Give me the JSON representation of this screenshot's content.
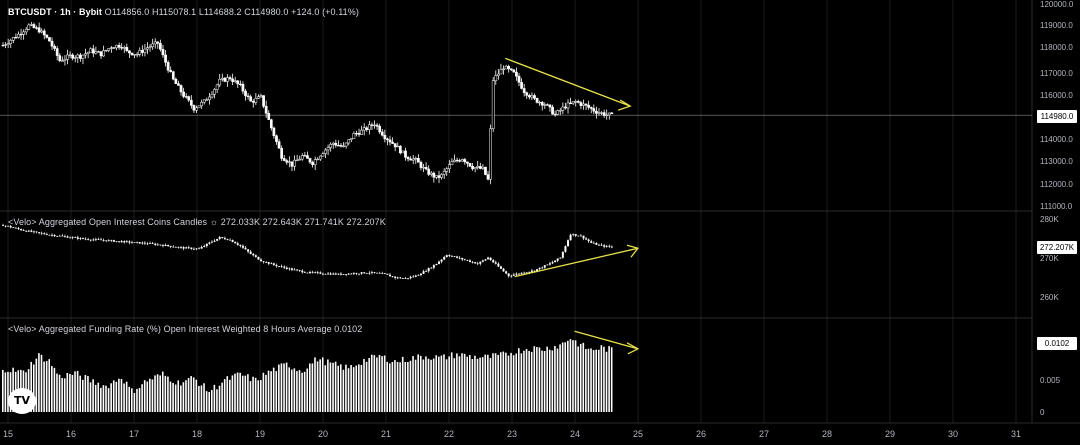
{
  "header": {
    "symbol": "BTCUSDT · 1h · Bybit",
    "ohlc": "O114856.0 H115078.1 L114688.2 C114980.0 +124.0 (+0.11%)"
  },
  "oi_pane": {
    "title": "<Velo> Aggregated Open Interest Coins Candles",
    "values": "272.033K 272.643K 271.741K 272.207K"
  },
  "funding_pane": {
    "title": "<Velo> Aggregated Funding Rate (%) Open Interest Weighted 8 Hours Average 0.0102"
  },
  "badges": {
    "price_last": "114980.0",
    "oi_last": "272.207K",
    "funding_last": "0.0102"
  },
  "logo": {
    "text": "TV",
    "icon": "tradingview-logo-icon"
  },
  "colors": {
    "background": "#000000",
    "candle": "#ffffff",
    "annotation": "#e6e04a",
    "grid": "#1c1c1c",
    "axis_text": "#b2b5be"
  },
  "chart_data": [
    {
      "type": "candlestick",
      "name": "BTCUSDT price",
      "x_ticks": [
        "15",
        "16",
        "17",
        "18",
        "19",
        "20",
        "21",
        "22",
        "23",
        "24",
        "25",
        "26",
        "27",
        "28",
        "29",
        "30",
        "31"
      ],
      "y_ticks": [
        "120000.0",
        "119000.0",
        "118000.0",
        "117000.0",
        "116000.0",
        "114000.0",
        "113000.0",
        "112000.0",
        "111000.0"
      ],
      "ylim": [
        110800,
        120100
      ],
      "last_price": 114980.0,
      "close_path": [
        [
          0,
          118200
        ],
        [
          6,
          118700
        ],
        [
          10,
          119100
        ],
        [
          14,
          118900
        ],
        [
          18,
          118400
        ],
        [
          22,
          117500
        ],
        [
          26,
          117700
        ],
        [
          30,
          117700
        ],
        [
          34,
          117950
        ],
        [
          38,
          117800
        ],
        [
          42,
          118150
        ],
        [
          46,
          118200
        ],
        [
          48,
          117900
        ],
        [
          52,
          117800
        ],
        [
          56,
          118100
        ],
        [
          60,
          118300
        ],
        [
          62,
          117700
        ],
        [
          66,
          116600
        ],
        [
          70,
          115900
        ],
        [
          74,
          115300
        ],
        [
          78,
          115600
        ],
        [
          82,
          116200
        ],
        [
          84,
          116550
        ],
        [
          88,
          116700
        ],
        [
          92,
          116300
        ],
        [
          96,
          115600
        ],
        [
          100,
          115800
        ],
        [
          104,
          114400
        ],
        [
          108,
          113100
        ],
        [
          112,
          112700
        ],
        [
          116,
          113100
        ],
        [
          120,
          112800
        ],
        [
          124,
          113300
        ],
        [
          128,
          113700
        ],
        [
          132,
          113500
        ],
        [
          136,
          114100
        ],
        [
          140,
          114300
        ],
        [
          144,
          114600
        ],
        [
          148,
          114000
        ],
        [
          152,
          113600
        ],
        [
          156,
          113100
        ],
        [
          160,
          112900
        ],
        [
          164,
          112400
        ],
        [
          168,
          112100
        ],
        [
          170,
          112200
        ],
        [
          174,
          112800
        ],
        [
          178,
          113000
        ],
        [
          182,
          112600
        ],
        [
          186,
          112500
        ],
        [
          188,
          112000
        ],
        [
          190,
          116600
        ],
        [
          194,
          117200
        ],
        [
          198,
          116900
        ],
        [
          202,
          116100
        ],
        [
          206,
          115700
        ],
        [
          210,
          115500
        ],
        [
          214,
          115000
        ],
        [
          218,
          115400
        ],
        [
          222,
          115600
        ],
        [
          226,
          115400
        ],
        [
          230,
          115150
        ],
        [
          234,
          115000
        ],
        [
          236,
          114980
        ]
      ],
      "trendline": [
        [
          190,
          117600
        ],
        [
          240,
          115400
        ]
      ]
    },
    {
      "type": "line",
      "name": "Aggregated Open Interest",
      "y_ticks": [
        "280K",
        "270K",
        "260K"
      ],
      "ylim": [
        255,
        282
      ],
      "last_value": 272.207,
      "close_path": [
        [
          0,
          279.6
        ],
        [
          8,
          277.8
        ],
        [
          16,
          276.6
        ],
        [
          24,
          275.7
        ],
        [
          32,
          274.9
        ],
        [
          40,
          274.4
        ],
        [
          48,
          273.9
        ],
        [
          56,
          273.4
        ],
        [
          64,
          272.6
        ],
        [
          70,
          271.9
        ],
        [
          76,
          271.6
        ],
        [
          80,
          273.6
        ],
        [
          84,
          275.4
        ],
        [
          88,
          274.6
        ],
        [
          92,
          272.6
        ],
        [
          96,
          269.9
        ],
        [
          100,
          267.6
        ],
        [
          106,
          265.9
        ],
        [
          112,
          264.6
        ],
        [
          118,
          263.6
        ],
        [
          124,
          263.3
        ],
        [
          130,
          263.0
        ],
        [
          136,
          263.3
        ],
        [
          142,
          263.6
        ],
        [
          148,
          263.0
        ],
        [
          152,
          261.9
        ],
        [
          156,
          261.6
        ],
        [
          160,
          262.5
        ],
        [
          164,
          264.3
        ],
        [
          168,
          266.6
        ],
        [
          172,
          269.6
        ],
        [
          176,
          268.6
        ],
        [
          180,
          267.6
        ],
        [
          184,
          266.6
        ],
        [
          188,
          268.6
        ],
        [
          192,
          265.6
        ],
        [
          196,
          262.5
        ],
        [
          200,
          263.3
        ],
        [
          206,
          264.3
        ],
        [
          212,
          266.6
        ],
        [
          216,
          268.6
        ],
        [
          220,
          276.6
        ],
        [
          224,
          275.9
        ],
        [
          228,
          273.6
        ],
        [
          232,
          272.6
        ],
        [
          236,
          272.2
        ]
      ],
      "trendline": [
        [
          196,
          262.2
        ],
        [
          243,
          271.8
        ]
      ]
    },
    {
      "type": "bar",
      "name": "Aggregated Funding Rate (%)",
      "y_ticks": [
        "0.01",
        "0.005",
        "0"
      ],
      "ylim": [
        0,
        0.0135
      ],
      "last_value": 0.0102,
      "values_path": [
        [
          0,
          0.0072
        ],
        [
          8,
          0.0065
        ],
        [
          14,
          0.0093
        ],
        [
          18,
          0.0084
        ],
        [
          22,
          0.0058
        ],
        [
          28,
          0.0064
        ],
        [
          34,
          0.0052
        ],
        [
          40,
          0.0042
        ],
        [
          46,
          0.0058
        ],
        [
          50,
          0.0034
        ],
        [
          56,
          0.0052
        ],
        [
          62,
          0.0062
        ],
        [
          68,
          0.0048
        ],
        [
          74,
          0.0056
        ],
        [
          80,
          0.0034
        ],
        [
          86,
          0.0052
        ],
        [
          92,
          0.0062
        ],
        [
          98,
          0.0052
        ],
        [
          104,
          0.0068
        ],
        [
          110,
          0.0078
        ],
        [
          116,
          0.0068
        ],
        [
          122,
          0.0088
        ],
        [
          128,
          0.0078
        ],
        [
          134,
          0.0072
        ],
        [
          140,
          0.0085
        ],
        [
          146,
          0.0092
        ],
        [
          152,
          0.0083
        ],
        [
          158,
          0.0088
        ],
        [
          164,
          0.0092
        ],
        [
          170,
          0.0089
        ],
        [
          176,
          0.0095
        ],
        [
          182,
          0.0091
        ],
        [
          188,
          0.009
        ],
        [
          194,
          0.0094
        ],
        [
          198,
          0.0099
        ],
        [
          204,
          0.0105
        ],
        [
          210,
          0.0104
        ],
        [
          216,
          0.011
        ],
        [
          220,
          0.0122
        ],
        [
          224,
          0.011
        ],
        [
          228,
          0.0102
        ],
        [
          232,
          0.0106
        ],
        [
          236,
          0.0102
        ]
      ],
      "trendline": [
        [
          220,
          0.0133
        ],
        [
          243,
          0.0104
        ]
      ]
    }
  ]
}
